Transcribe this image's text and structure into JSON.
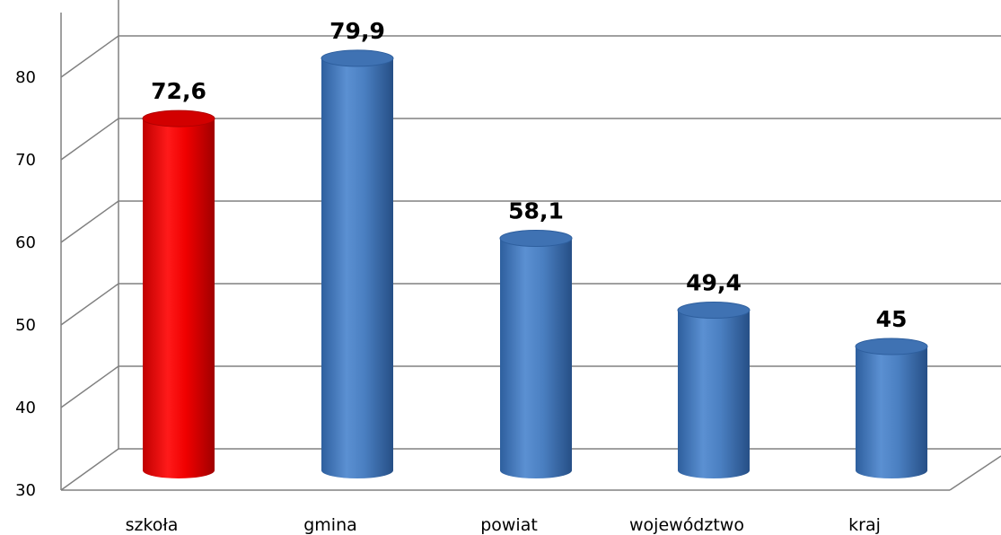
{
  "chart_data": {
    "type": "bar",
    "style": "3d-cylinder",
    "categories": [
      "szkoła",
      "gmina",
      "powiat",
      "województwo",
      "kraj"
    ],
    "values": [
      72.6,
      79.9,
      58.1,
      49.4,
      45
    ],
    "value_labels": [
      "72,6",
      "79,9",
      "58,1",
      "49,4",
      "45"
    ],
    "highlight_index": 0,
    "colors": {
      "highlight": "#e01010",
      "default": "#4a7fc1",
      "grid": "#808080"
    },
    "ylim": [
      30,
      80
    ],
    "yticks": [
      30,
      40,
      50,
      60,
      70,
      80
    ],
    "grid": true,
    "legend": "none"
  }
}
